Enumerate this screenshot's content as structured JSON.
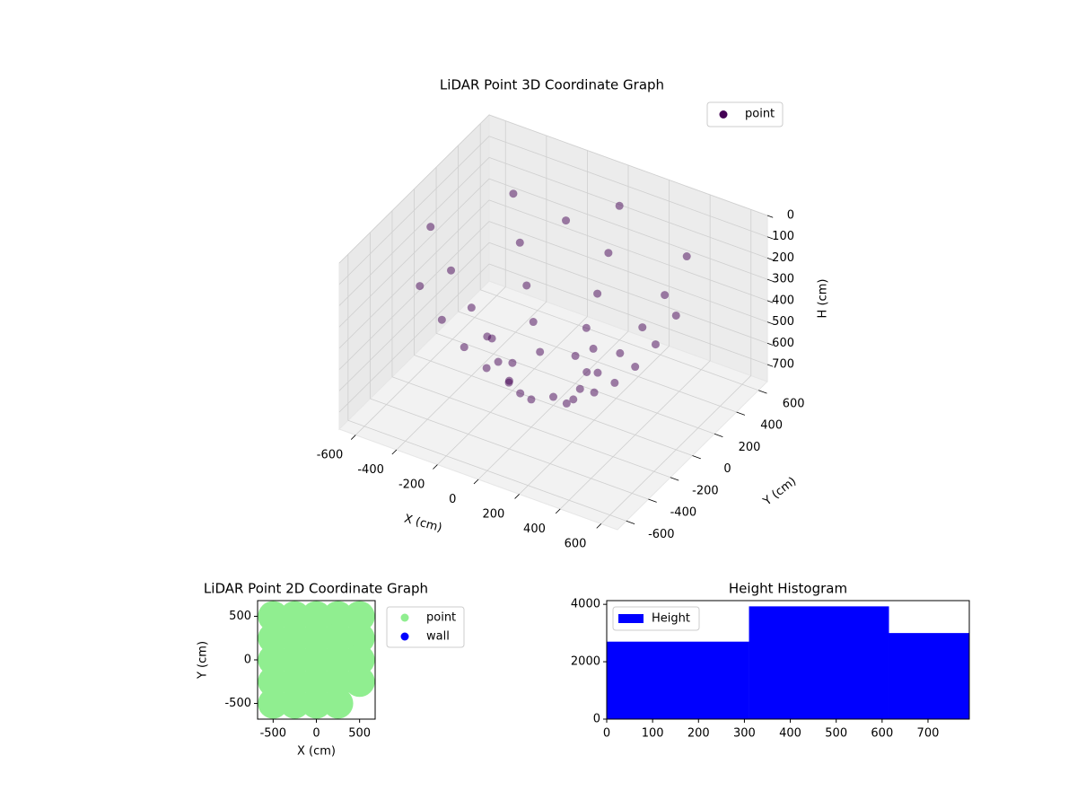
{
  "chart_data": [
    {
      "type": "scatter3d",
      "title": "LiDAR Point 3D Coordinate Graph",
      "xlabel": "X (cm)",
      "ylabel": "Y (cm)",
      "zlabel": "H (cm)",
      "xlim": [
        -680,
        680
      ],
      "ylim": [
        -680,
        680
      ],
      "zlim": [
        0,
        780
      ],
      "z_inverted": true,
      "xticks": [
        -600,
        -400,
        -200,
        0,
        200,
        400,
        600
      ],
      "yticks": [
        -600,
        -400,
        -200,
        0,
        200,
        400,
        600
      ],
      "zticks": [
        0,
        100,
        200,
        300,
        400,
        500,
        600,
        700
      ],
      "grid": true,
      "legend": "upper-right",
      "series": [
        {
          "name": "point",
          "color": "#440154",
          "x": [
            600,
            424,
            0,
            -424,
            -600,
            -424,
            0,
            424,
            500,
            354,
            0,
            -354,
            -500,
            -354,
            0,
            354,
            400,
            283,
            0,
            -283,
            -400,
            -283,
            0,
            283,
            300,
            212,
            0,
            -212,
            -300,
            -212,
            0,
            212,
            200,
            141,
            0,
            -141,
            -200,
            -141,
            0,
            141,
            0,
            -100
          ],
          "y": [
            0,
            424,
            600,
            424,
            0,
            -424,
            -600,
            -424,
            0,
            354,
            500,
            354,
            0,
            -354,
            -500,
            -354,
            0,
            283,
            400,
            283,
            0,
            -283,
            -400,
            -283,
            0,
            212,
            300,
            212,
            0,
            -212,
            -300,
            -212,
            0,
            141,
            200,
            141,
            0,
            -141,
            -200,
            -141,
            0,
            300
          ],
          "z": [
            150,
            150,
            150,
            150,
            150,
            150,
            150,
            150,
            320,
            320,
            320,
            320,
            320,
            320,
            320,
            320,
            460,
            460,
            460,
            460,
            460,
            460,
            460,
            460,
            570,
            570,
            570,
            570,
            570,
            570,
            570,
            570,
            650,
            650,
            650,
            650,
            650,
            650,
            650,
            650,
            740,
            100
          ]
        }
      ]
    },
    {
      "type": "scatter",
      "title": "LiDAR Point 2D Coordinate Graph",
      "xlabel": "X (cm)",
      "ylabel": "Y (cm)",
      "xlim": [
        -680,
        680
      ],
      "ylim": [
        -680,
        680
      ],
      "xticks": [
        -500,
        0,
        500
      ],
      "yticks": [
        -500,
        0,
        500
      ],
      "legend": "outside-right",
      "series": [
        {
          "name": "point",
          "color": "#90ee90",
          "x": [
            -500,
            -250,
            0,
            250,
            500,
            -500,
            -250,
            0,
            250,
            500,
            -500,
            -250,
            0,
            250,
            500,
            -500,
            -250,
            0,
            250,
            500,
            -500,
            -250,
            0,
            250
          ],
          "y": [
            500,
            500,
            500,
            500,
            500,
            250,
            250,
            250,
            250,
            250,
            0,
            0,
            0,
            0,
            0,
            -250,
            -250,
            -250,
            -250,
            -250,
            -500,
            -500,
            -500,
            -500
          ]
        },
        {
          "name": "wall",
          "color": "#0000ff",
          "x": [],
          "y": []
        }
      ]
    },
    {
      "type": "histogram",
      "title": "Height Histogram",
      "name": "Height",
      "color": "#0000ff",
      "bins": [
        0,
        310,
        615,
        790
      ],
      "counts": [
        2700,
        3930,
        3000
      ],
      "xlim": [
        0,
        790
      ],
      "ylim": [
        0,
        4130
      ],
      "xticks": [
        0,
        100,
        200,
        300,
        400,
        500,
        600,
        700
      ],
      "yticks": [
        0,
        2000,
        4000
      ],
      "legend": "upper-left"
    }
  ]
}
